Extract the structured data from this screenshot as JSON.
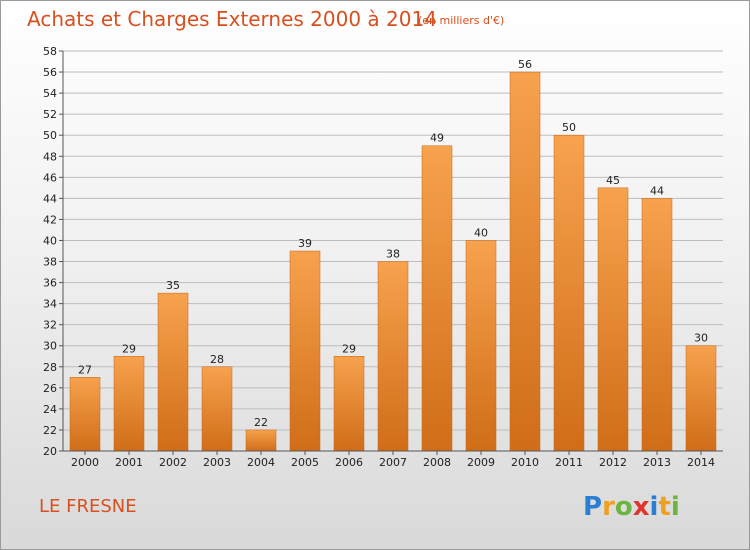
{
  "header": {
    "title": "Achats et Charges Externes 2000 à 2014",
    "unit": "(en milliers d'€)"
  },
  "footer": {
    "commune": "LE FRESNE",
    "logo_text": "Proxiti"
  },
  "colors": {
    "title": "#d8501e",
    "bar_top": "#f7a24e",
    "bar_bottom": "#d06d18",
    "grid": "#bdbdbd"
  },
  "chart_data": {
    "type": "bar",
    "title": "Achats et Charges Externes 2000 à 2014",
    "subtitle": "(en milliers d'€)",
    "xlabel": "",
    "ylabel": "",
    "categories": [
      "2000",
      "2001",
      "2002",
      "2003",
      "2004",
      "2005",
      "2006",
      "2007",
      "2008",
      "2009",
      "2010",
      "2011",
      "2012",
      "2013",
      "2014"
    ],
    "values": [
      27,
      29,
      35,
      28,
      22,
      39,
      29,
      38,
      49,
      40,
      56,
      50,
      45,
      44,
      30
    ],
    "data_labels": [
      "27",
      "29",
      "35",
      "28",
      "22",
      "39",
      "29",
      "38",
      "49",
      "40",
      "56",
      "50",
      "45",
      "44",
      "30"
    ],
    "ylim": [
      20,
      58
    ],
    "yticks": [
      "20",
      "22",
      "24",
      "26",
      "28",
      "30",
      "32",
      "34",
      "36",
      "38",
      "40",
      "42",
      "44",
      "46",
      "48",
      "50",
      "52",
      "54",
      "56",
      "58"
    ],
    "grid": true,
    "legend": "none"
  }
}
